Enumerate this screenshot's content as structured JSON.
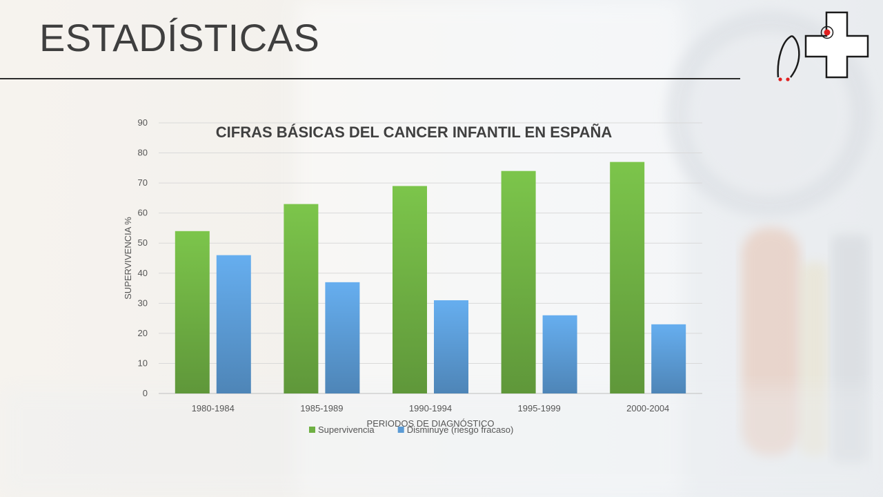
{
  "slide": {
    "title": "ESTADÍSTICAS"
  },
  "chart_data": {
    "type": "bar",
    "title": "CIFRAS BÁSICAS DEL CANCER INFANTIL EN ESPAÑA",
    "xlabel": "PERIODOS DE DIAGNÓSTICO",
    "ylabel": "SUPERVIVENCIA %",
    "ylim": [
      0,
      90
    ],
    "yticks": [
      0,
      10,
      20,
      30,
      40,
      50,
      60,
      70,
      80,
      90
    ],
    "categories": [
      "1980-1984",
      "1985-1989",
      "1990-1994",
      "1995-1999",
      "2000-2004"
    ],
    "series": [
      {
        "name": "Supervivencia",
        "values": [
          54,
          63,
          69,
          74,
          77
        ],
        "color": "#6fb043"
      },
      {
        "name": "Disminuye (riesgo fracaso)",
        "values": [
          46,
          37,
          31,
          26,
          23
        ],
        "color": "#5b9bd5"
      }
    ],
    "grid": true,
    "legend_position": "bottom"
  },
  "logo": {
    "icon": "medical-cross-stethoscope-icon",
    "accent_color": "#e02020"
  }
}
